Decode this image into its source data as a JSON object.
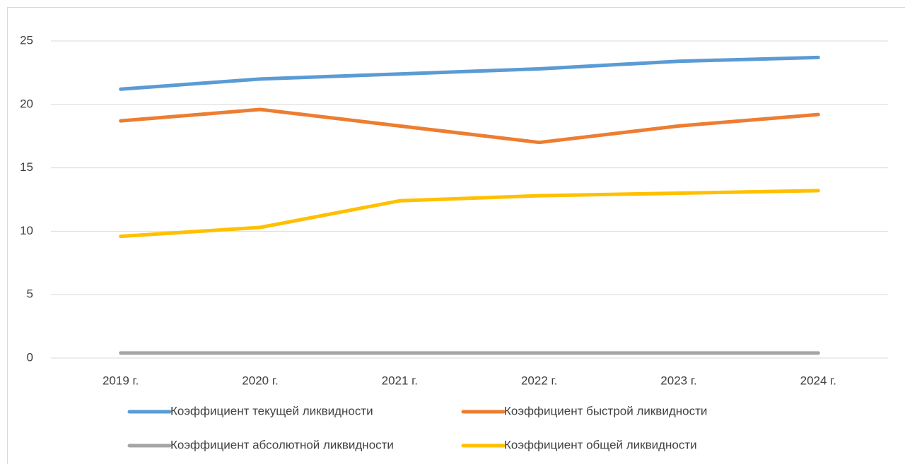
{
  "chart_data": {
    "type": "line",
    "categories": [
      "2019 г.",
      "2020 г.",
      "2021 г.",
      "2022 г.",
      "2023 г.",
      "2024 г."
    ],
    "series": [
      {
        "name": "Коэффициент текущей ликвидности",
        "color": "#5b9bd5",
        "values": [
          21.2,
          22.0,
          22.4,
          22.8,
          23.4,
          23.7
        ]
      },
      {
        "name": "Коэффициент быстрой ликвидности",
        "color": "#ed7d31",
        "values": [
          18.7,
          19.6,
          18.3,
          17.0,
          18.3,
          19.2
        ]
      },
      {
        "name": "Коэффициент абсолютной ликвидности",
        "color": "#a5a5a5",
        "values": [
          0.4,
          0.4,
          0.4,
          0.4,
          0.4,
          0.4
        ]
      },
      {
        "name": "Коэффициент общей ликвидности",
        "color": "#ffc000",
        "values": [
          9.6,
          10.3,
          12.4,
          12.8,
          13.0,
          13.2
        ]
      }
    ],
    "ylim": [
      0,
      25
    ],
    "yticks": [
      0,
      5,
      10,
      15,
      20,
      25
    ],
    "grid": true,
    "legend": "bottom"
  }
}
